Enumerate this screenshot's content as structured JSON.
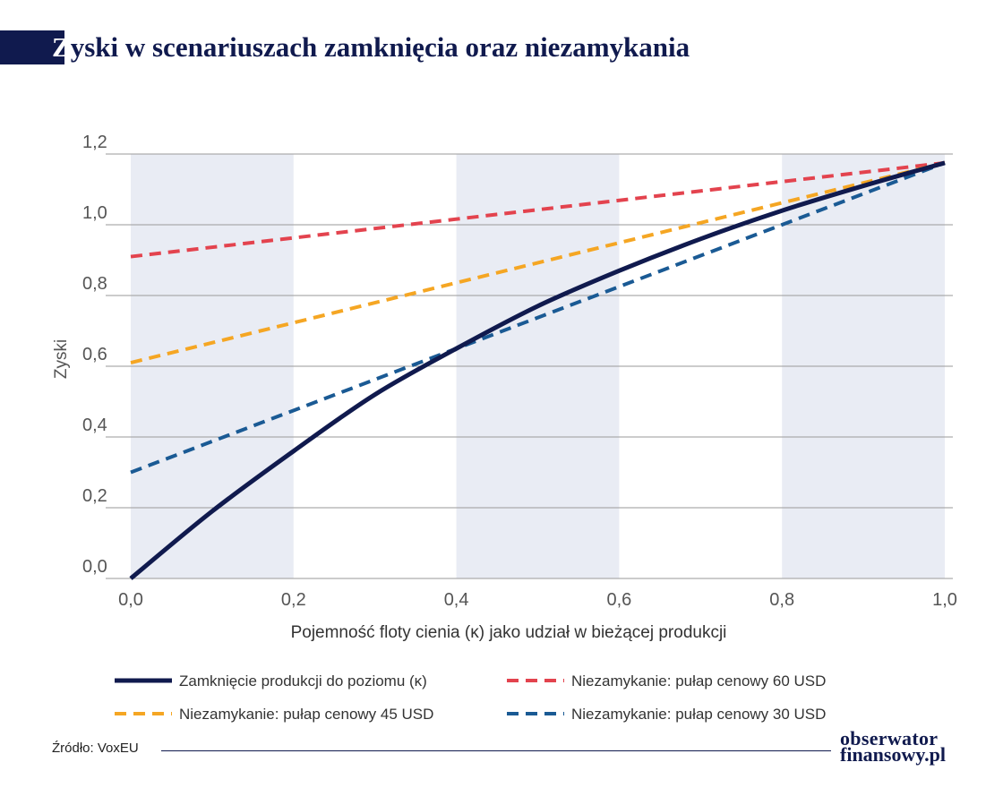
{
  "title": {
    "first_letter": "Z",
    "rest": "yski w scenariuszach zamknięcia oraz niezamykania"
  },
  "footer": {
    "source": "Źródło: VoxEU"
  },
  "logo": {
    "line1": "obserwator",
    "line2": "finansowy.pl"
  },
  "chart_data": {
    "type": "line",
    "title": "Zyski w scenariuszach zamknięcia oraz niezamykania",
    "xlabel": "Pojemność floty cienia (κ) jako udział w bieżącej produkcji",
    "ylabel": "Zyski",
    "xlim": [
      0,
      1
    ],
    "ylim": [
      0,
      1.2
    ],
    "x_ticks": [
      "0,0",
      "0,2",
      "0,4",
      "0,6",
      "0,8",
      "1,0"
    ],
    "y_ticks": [
      "0,0",
      "0,2",
      "0,4",
      "0,6",
      "0,8",
      "1,0",
      "1,2"
    ],
    "grid": "horizontal",
    "shaded_x_bands": [
      [
        0,
        0.2
      ],
      [
        0.4,
        0.6
      ],
      [
        0.8,
        1.0
      ]
    ],
    "legend_position": "bottom",
    "series": [
      {
        "name": "Zamknięcie produkcji do poziomu (κ)",
        "style": "solid",
        "color": "#101a4e",
        "x": [
          0,
          0.1,
          0.2,
          0.3,
          0.4,
          0.5,
          0.6,
          0.7,
          0.8,
          0.9,
          1.0
        ],
        "values": [
          0.0,
          0.19,
          0.36,
          0.52,
          0.65,
          0.77,
          0.87,
          0.96,
          1.04,
          1.11,
          1.175
        ]
      },
      {
        "name": "Niezamykanie: pułap cenowy 60 USD",
        "style": "dashed",
        "color": "#e3434e",
        "x": [
          0,
          1.0
        ],
        "values": [
          0.91,
          1.175
        ]
      },
      {
        "name": "Niezamykanie: pułap cenowy 45 USD",
        "style": "dashed",
        "color": "#f5a623",
        "x": [
          0,
          1.0
        ],
        "values": [
          0.61,
          1.175
        ]
      },
      {
        "name": "Niezamykanie: pułap cenowy 30 USD",
        "style": "dashed",
        "color": "#1a5a94",
        "x": [
          0,
          1.0
        ],
        "values": [
          0.3,
          1.175
        ]
      }
    ]
  }
}
